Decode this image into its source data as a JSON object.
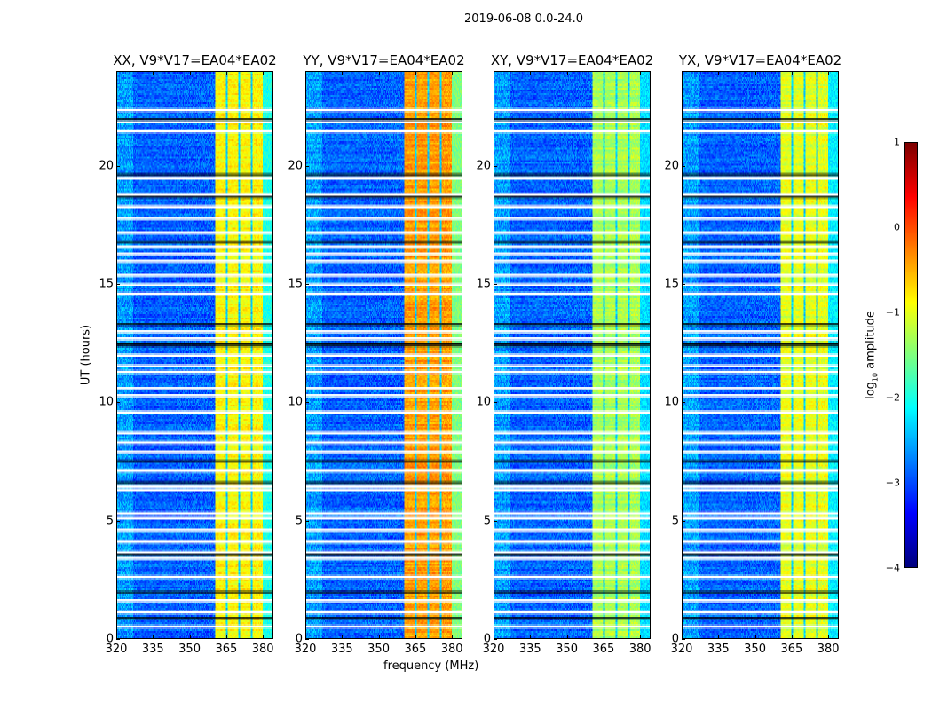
{
  "chart_data": {
    "type": "heatmap",
    "title": "2019-06-08 0.0-24.0",
    "xlabel": "frequency (MHz)",
    "ylabel": "UT (hours)",
    "xlim": [
      320,
      384.3
    ],
    "ylim": [
      0,
      24
    ],
    "xticks": [
      "320",
      "335",
      "350",
      "365",
      "380"
    ],
    "xtick_values": [
      320,
      335,
      350,
      365,
      380
    ],
    "yticks": [
      "0",
      "5",
      "10",
      "15",
      "20"
    ],
    "ytick_values": [
      0,
      5,
      10,
      15,
      20
    ],
    "colorbar": {
      "label_prefix": "log",
      "label_sub": "10",
      "label_suffix": " amplitude",
      "range": [
        -4,
        1
      ],
      "ticks": [
        "1",
        "0",
        "−1",
        "−2",
        "−3",
        "−4"
      ],
      "tick_values": [
        1,
        0,
        -1,
        -2,
        -3,
        -4
      ],
      "colormap": "jet"
    },
    "background_level": -2.9,
    "band_range_mhz": [
      360.7,
      380.4
    ],
    "band_gaps_mhz": [
      365.4,
      370.5,
      375.6
    ],
    "flagged_white_hours": [
      0.5,
      1.1,
      1.6,
      2.6,
      3.4,
      3.65,
      4.1,
      4.6,
      5.1,
      5.3,
      6.3,
      6.45,
      7.1,
      7.9,
      8.3,
      8.7,
      9.6,
      10.3,
      10.6,
      11.3,
      11.55,
      12.0,
      12.7,
      13.0,
      14.6,
      15.0,
      15.4,
      16.0,
      16.3,
      16.6,
      17.2,
      17.8,
      18.3,
      18.8,
      19.5,
      21.5,
      21.9,
      22.4
    ],
    "flagged_black_hours": [
      0.85,
      1.95,
      3.55,
      6.6,
      7.5,
      12.4,
      12.5,
      13.3,
      16.8,
      18.7,
      19.65,
      22.0
    ],
    "panels": [
      {
        "title": "XX, V9*V17=EA04*EA02",
        "band_level": -0.85,
        "edge_level": -2.0
      },
      {
        "title": "YY, V9*V17=EA04*EA02",
        "band_level": -0.4,
        "edge_level": -1.5
      },
      {
        "title": "XY, V9*V17=EA04*EA02",
        "band_level": -1.3,
        "edge_level": -2.3
      },
      {
        "title": "YX, V9*V17=EA04*EA02",
        "band_level": -1.0,
        "edge_level": -2.2
      }
    ]
  }
}
